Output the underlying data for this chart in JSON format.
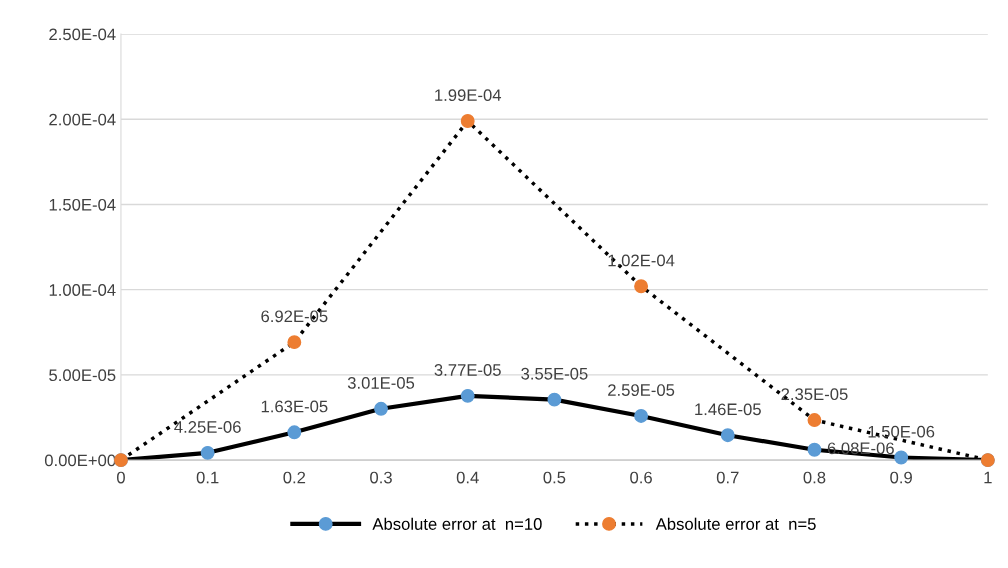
{
  "chart_data": {
    "type": "line",
    "series": [
      {
        "name": "Absolute error at  n=10",
        "color": "#5b9bd5",
        "line_style": "solid",
        "x": [
          0,
          0.1,
          0.2,
          0.3,
          0.4,
          0.5,
          0.6,
          0.7,
          0.8,
          0.9,
          1
        ],
        "values": [
          0,
          4.25e-06,
          1.63e-05,
          3.01e-05,
          3.77e-05,
          3.55e-05,
          2.59e-05,
          1.46e-05,
          6.08e-06,
          1.5e-06,
          0
        ],
        "value_labels": [
          null,
          "4.25E-06",
          "1.63E-05",
          "3.01E-05",
          "3.77E-05",
          "3.55E-05",
          "2.59E-05",
          "1.46E-05",
          "6.08E-06",
          "1.50E-06",
          null
        ]
      },
      {
        "name": "Absolute error at  n=5",
        "color": "#ed7d31",
        "line_style": "dotted",
        "x": [
          0,
          0.2,
          0.4,
          0.6,
          0.8,
          1
        ],
        "values": [
          0,
          6.92e-05,
          0.000199,
          0.000102,
          2.35e-05,
          0
        ],
        "value_labels": [
          null,
          "6.92E-05",
          "1.99E-04",
          "1.02E-04",
          "2.35E-05",
          null
        ]
      }
    ],
    "xlim": [
      0,
      1
    ],
    "xticks": [
      0,
      0.1,
      0.2,
      0.3,
      0.4,
      0.5,
      0.6,
      0.7,
      0.8,
      0.9,
      1
    ],
    "ylim": [
      0,
      0.00025
    ],
    "yticks": [
      {
        "value": 0,
        "label": "0.00E+00"
      },
      {
        "value": 5e-05,
        "label": "5.00E-05"
      },
      {
        "value": 0.0001,
        "label": "1.00E-04"
      },
      {
        "value": 0.00015,
        "label": "1.50E-04"
      },
      {
        "value": 0.0002,
        "label": "2.00E-04"
      },
      {
        "value": 0.00025,
        "label": "2.50E-04"
      }
    ],
    "grid": "y",
    "legend": "bottom",
    "marker": "circle"
  }
}
